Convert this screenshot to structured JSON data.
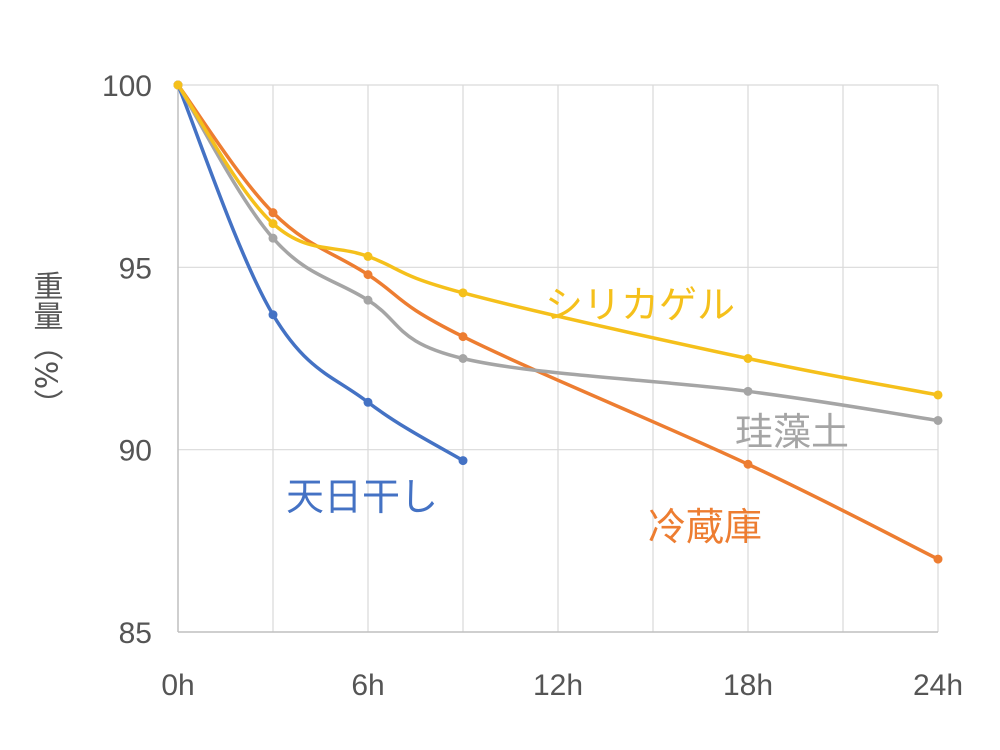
{
  "chart_data": {
    "type": "line",
    "ylabel": "重量（%）",
    "x_ticks": [
      "0h",
      "6h",
      "12h",
      "18h",
      "24h"
    ],
    "y_ticks": [
      100,
      95,
      90,
      85
    ],
    "xlim": [
      0,
      24
    ],
    "ylim": [
      85,
      100
    ],
    "grid": true,
    "series": [
      {
        "name": "天日干し",
        "color": "#4472C4",
        "x": [
          0,
          3,
          6,
          9
        ],
        "y": [
          100,
          93.7,
          91.3,
          89.7
        ]
      },
      {
        "name": "冷蔵庫",
        "color": "#ED7D31",
        "x": [
          0,
          3,
          6,
          9,
          18,
          24
        ],
        "y": [
          100,
          96.5,
          94.8,
          93.1,
          89.6,
          87.0
        ]
      },
      {
        "name": "珪藻土",
        "color": "#A5A5A5",
        "x": [
          0,
          3,
          6,
          9,
          18,
          24
        ],
        "y": [
          100,
          95.8,
          94.1,
          92.5,
          91.6,
          90.8
        ]
      },
      {
        "name": "シリカゲル",
        "color": "#F5C01B",
        "x": [
          0,
          3,
          6,
          9,
          18,
          24
        ],
        "y": [
          100,
          96.2,
          95.3,
          94.3,
          92.5,
          91.5
        ]
      }
    ]
  }
}
